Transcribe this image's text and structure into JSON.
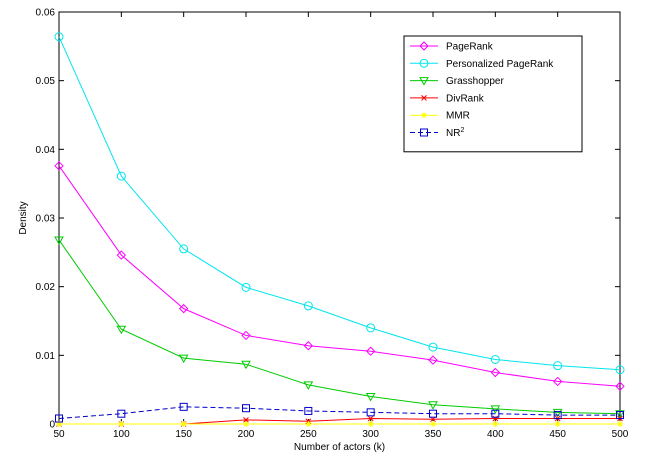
{
  "chart_data": {
    "type": "line",
    "title": "",
    "xlabel": "Number of actors (k)",
    "ylabel": "Density",
    "xlim": [
      50,
      500
    ],
    "ylim": [
      0,
      0.06
    ],
    "xticks": [
      50,
      100,
      150,
      200,
      250,
      300,
      350,
      400,
      450,
      500
    ],
    "yticks": [
      0,
      0.01,
      0.02,
      0.03,
      0.04,
      0.05,
      0.06
    ],
    "ytick_labels": [
      "0",
      "0.01",
      "0.02",
      "0.03",
      "0.04",
      "0.05",
      "0.06"
    ],
    "grid": false,
    "legend_position": "top-right",
    "x": [
      50,
      100,
      150,
      200,
      250,
      300,
      350,
      400,
      450,
      500
    ],
    "series": [
      {
        "name": "PageRank",
        "color": "#ff00ff",
        "marker": "diamond",
        "dash": "solid",
        "values": [
          0.0376,
          0.0246,
          0.0168,
          0.0129,
          0.0114,
          0.0106,
          0.0093,
          0.0075,
          0.0062,
          0.0055
        ]
      },
      {
        "name": "Personalized PageRank",
        "color": "#00e5ee",
        "marker": "circle",
        "dash": "solid",
        "values": [
          0.0564,
          0.0361,
          0.0255,
          0.0199,
          0.0172,
          0.014,
          0.0112,
          0.0094,
          0.0085,
          0.0079
        ]
      },
      {
        "name": "Grasshopper",
        "color": "#00cc00",
        "marker": "triangle-down",
        "dash": "solid",
        "values": [
          0.0268,
          0.0138,
          0.0096,
          0.0087,
          0.0057,
          0.004,
          0.0028,
          0.0022,
          0.0017,
          0.0015
        ]
      },
      {
        "name": "DivRank",
        "color": "#ff0000",
        "marker": "x",
        "dash": "solid",
        "values": [
          0.0,
          0.0,
          0.0,
          0.0006,
          0.0004,
          0.0008,
          0.0007,
          0.0008,
          0.0008,
          0.0008
        ]
      },
      {
        "name": "MMR",
        "color": "#ffff00",
        "marker": "star",
        "dash": "solid",
        "values": [
          0.0,
          0.0,
          0.0,
          0.0,
          0.0,
          0.0,
          0.0,
          0.0,
          0.0,
          0.0
        ]
      },
      {
        "name": "NR",
        "name_sup": "2",
        "color": "#0000cc",
        "marker": "square",
        "dash": "dashed",
        "values": [
          0.0008,
          0.0015,
          0.0025,
          0.0023,
          0.0019,
          0.0017,
          0.0015,
          0.0015,
          0.0013,
          0.0013
        ]
      }
    ]
  }
}
